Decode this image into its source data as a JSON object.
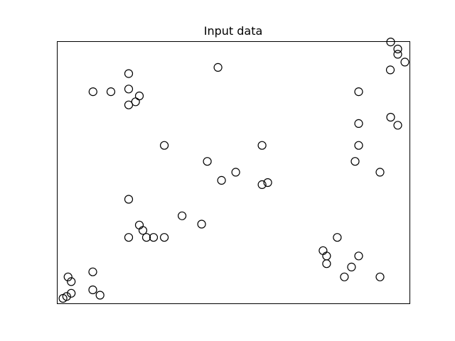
{
  "chart_data": {
    "type": "scatter",
    "title": "Input data",
    "xlabel": "",
    "ylabel": "",
    "axes_ticks": false,
    "grid": false,
    "marker": "open-circle",
    "marker_color": "#000000",
    "series": [
      {
        "points": [
          [
            0.0154,
            0.0189
          ],
          [
            0.0258,
            0.0264
          ],
          [
            0.0387,
            0.0385
          ],
          [
            0.0387,
            0.083
          ],
          [
            0.0297,
            0.1008
          ],
          [
            0.1001,
            0.0515
          ],
          [
            0.1207,
            0.0311
          ],
          [
            0.1001,
            0.1201
          ],
          [
            0.1007,
            0.8074
          ],
          [
            0.1516,
            0.8074
          ],
          [
            0.2021,
            0.757
          ],
          [
            0.2021,
            0.8176
          ],
          [
            0.2021,
            0.8765
          ],
          [
            0.2216,
            0.7688
          ],
          [
            0.2324,
            0.7912
          ],
          [
            0.2021,
            0.397
          ],
          [
            0.2324,
            0.2986
          ],
          [
            0.2425,
            0.2783
          ],
          [
            0.2526,
            0.2514
          ],
          [
            0.2728,
            0.2514
          ],
          [
            0.3032,
            0.2514
          ],
          [
            0.2021,
            0.2514
          ],
          [
            0.3032,
            0.6025
          ],
          [
            0.3537,
            0.3339
          ],
          [
            0.4093,
            0.3023
          ],
          [
            0.4255,
            0.5415
          ],
          [
            0.4558,
            0.9001
          ],
          [
            0.4659,
            0.469
          ],
          [
            0.5063,
            0.5004
          ],
          [
            0.5811,
            0.4528
          ],
          [
            0.5972,
            0.4606
          ],
          [
            0.5811,
            0.6025
          ],
          [
            0.7543,
            0.2011
          ],
          [
            0.7644,
            0.1807
          ],
          [
            0.7644,
            0.1513
          ],
          [
            0.7947,
            0.2514
          ],
          [
            0.815,
            0.1008
          ],
          [
            0.8352,
            0.1384
          ],
          [
            0.8555,
            0.1807
          ],
          [
            0.9161,
            0.1008
          ],
          [
            0.8454,
            0.5415
          ],
          [
            0.8555,
            0.6025
          ],
          [
            0.8555,
            0.686
          ],
          [
            0.8555,
            0.8074
          ],
          [
            0.9161,
            0.5004
          ],
          [
            0.9454,
            0.8904
          ],
          [
            0.9464,
            0.71
          ],
          [
            0.9666,
            0.6795
          ],
          [
            0.9464,
            0.997
          ],
          [
            0.9666,
            0.9701
          ],
          [
            0.9666,
            0.95
          ],
          [
            0.9869,
            0.9202
          ]
        ]
      }
    ],
    "xlim": [
      0,
      1
    ],
    "ylim": [
      0,
      1
    ]
  }
}
